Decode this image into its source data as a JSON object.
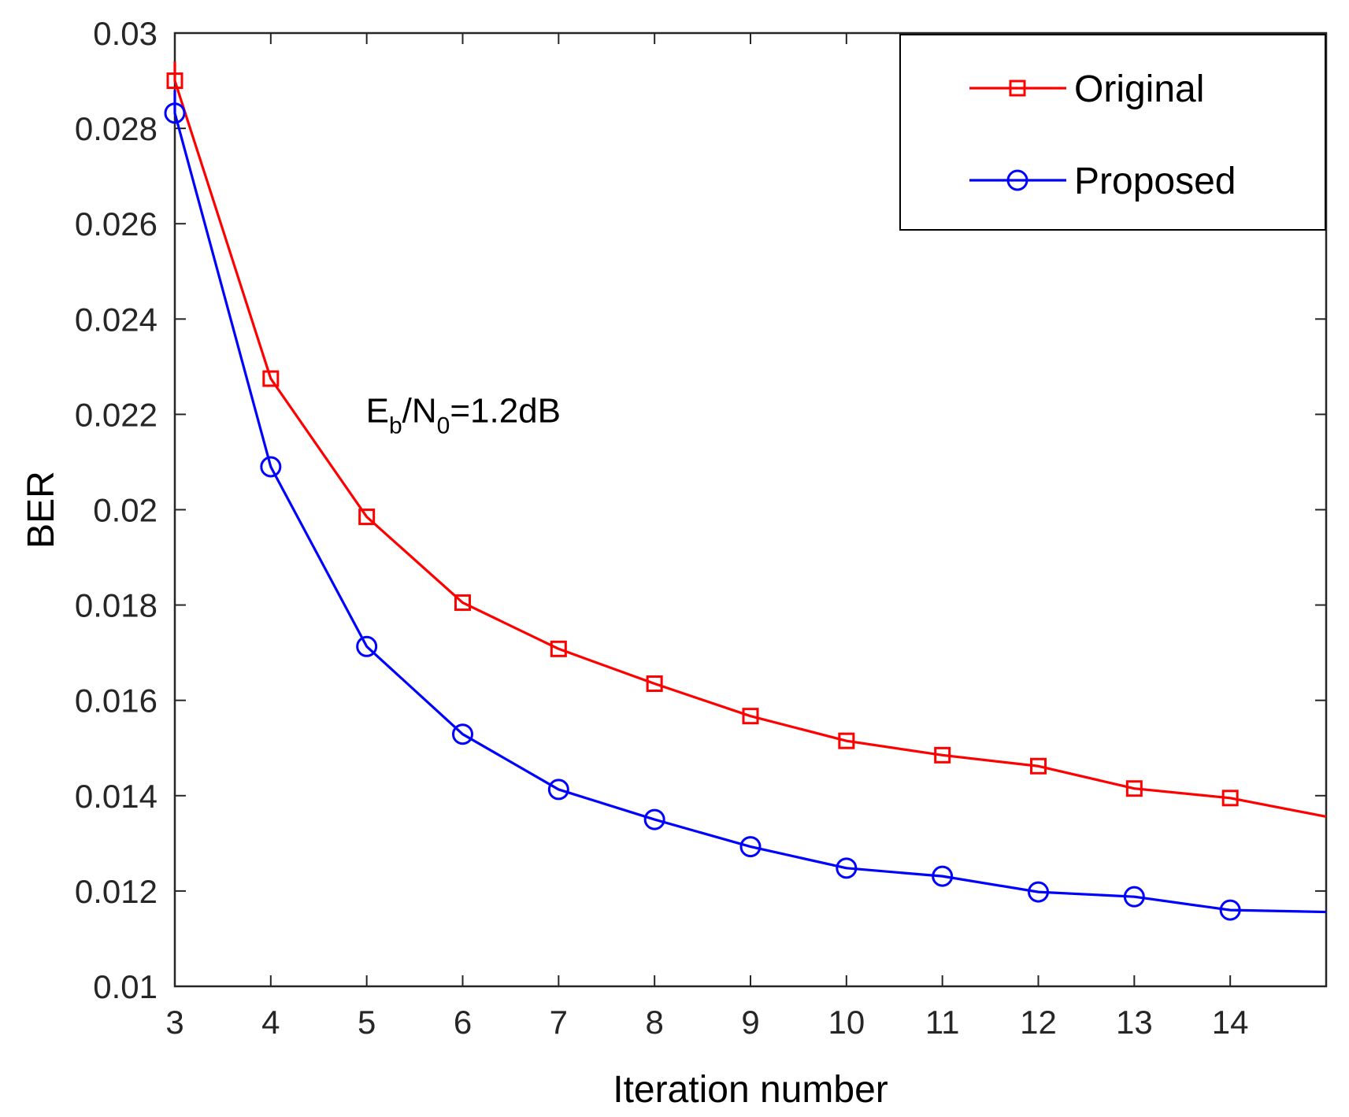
{
  "chart_data": {
    "type": "line",
    "title": "",
    "xlabel": "Iteration number",
    "ylabel": "BER",
    "xlim": [
      3,
      15
    ],
    "ylim": [
      0.01,
      0.03
    ],
    "xticks": [
      3,
      4,
      5,
      6,
      7,
      8,
      9,
      10,
      11,
      12,
      13,
      14
    ],
    "xtick_labels": [
      "3",
      "4",
      "5",
      "6",
      "7",
      "8",
      "9",
      "10",
      "11",
      "12",
      "13",
      "14"
    ],
    "yticks": [
      0.01,
      0.012,
      0.014,
      0.016,
      0.018,
      0.02,
      0.022,
      0.024,
      0.026,
      0.028,
      0.03
    ],
    "ytick_labels": [
      "0.01",
      "0.012",
      "0.014",
      "0.016",
      "0.018",
      "0.02",
      "0.022",
      "0.024",
      "0.026",
      "0.028",
      "0.03"
    ],
    "grid": false,
    "legend_position": "top-right",
    "annotation": {
      "E": "E",
      "b": "b",
      "slash": "/N",
      "zero": "0",
      "rest": "=1.2dB",
      "x": 5.5,
      "y": 0.0221
    },
    "series": [
      {
        "name": "Original",
        "color": "#ff0000",
        "marker": "square",
        "x": [
          3,
          4,
          5,
          6,
          7,
          8,
          9,
          10,
          11,
          12,
          13,
          14
        ],
        "values": [
          0.029,
          0.02275,
          0.01985,
          0.01805,
          0.01708,
          0.01635,
          0.01567,
          0.01515,
          0.01485,
          0.01462,
          0.01415,
          0.01395
        ],
        "line_end": [
          3.0,
          0.0294,
          15.0,
          0.01356
        ]
      },
      {
        "name": "Proposed",
        "color": "#0000ff",
        "marker": "circle",
        "x": [
          3,
          4,
          5,
          6,
          7,
          8,
          9,
          10,
          11,
          12,
          13,
          14
        ],
        "values": [
          0.02832,
          0.0209,
          0.01713,
          0.01529,
          0.01413,
          0.0135,
          0.01293,
          0.01248,
          0.01231,
          0.01198,
          0.01188,
          0.0116
        ],
        "line_end": [
          3.0,
          0.0288,
          15.0,
          0.01156
        ]
      }
    ]
  }
}
